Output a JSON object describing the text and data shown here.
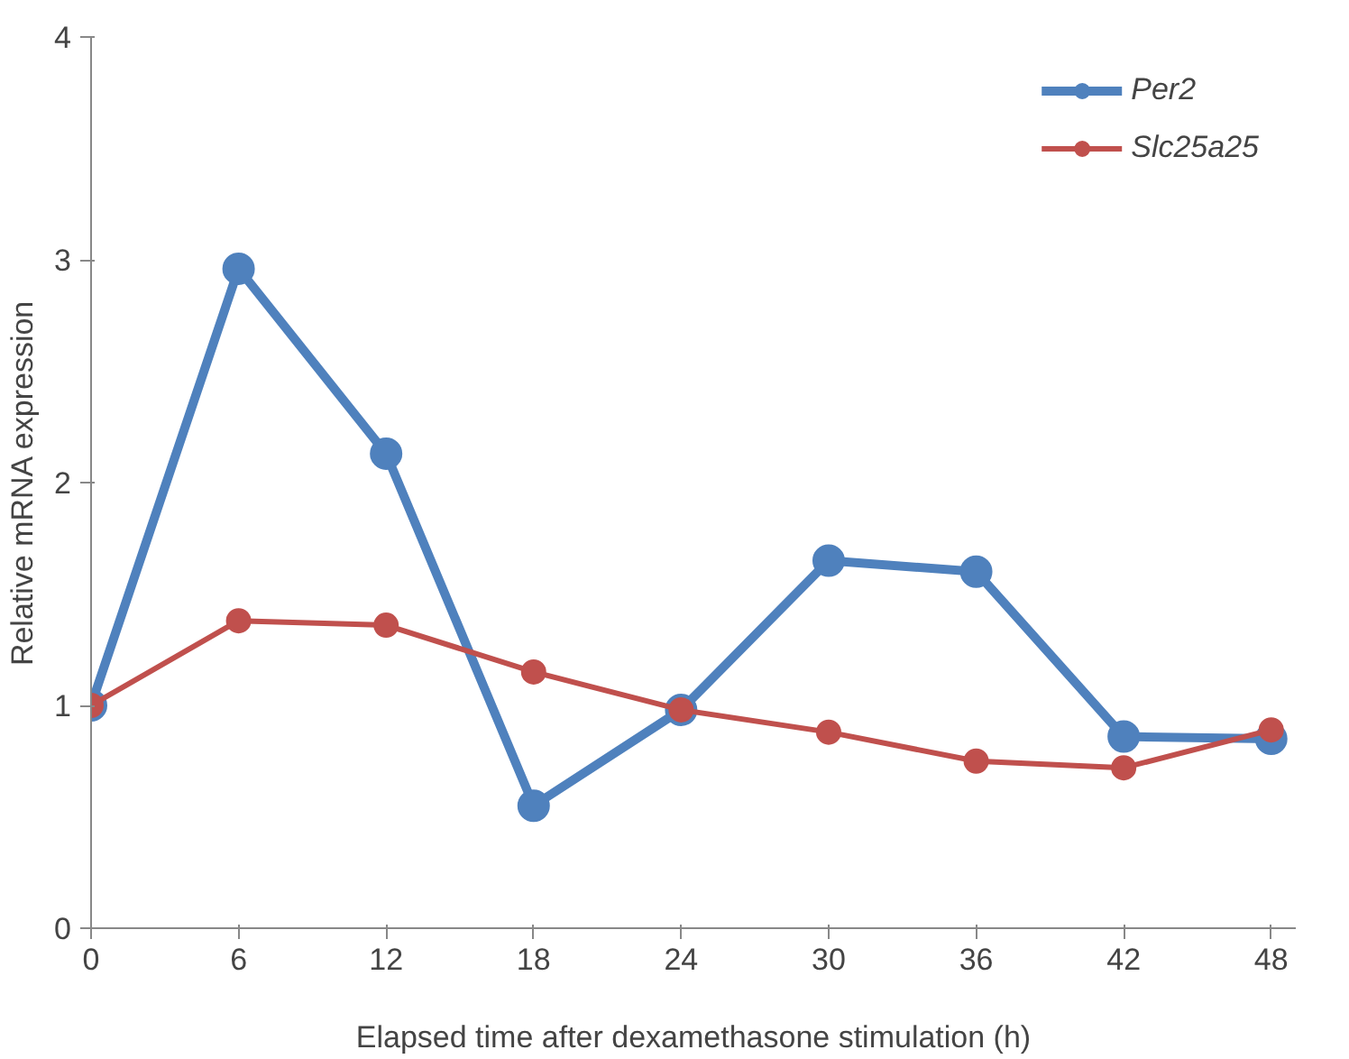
{
  "chart_data": {
    "type": "line",
    "xlabel": "Elapsed time after dexamethasone stimulation (h)",
    "ylabel": "Relative mRNA expression",
    "x": [
      0,
      6,
      12,
      18,
      24,
      30,
      36,
      42,
      48
    ],
    "series": [
      {
        "name": "Per2",
        "color": "#4f81bd",
        "values": [
          1,
          2.96,
          2.13,
          0.55,
          0.98,
          1.65,
          1.6,
          0.86,
          0.85
        ]
      },
      {
        "name": "Slc25a25",
        "color": "#c0504d",
        "values": [
          1,
          1.38,
          1.36,
          1.15,
          0.98,
          0.88,
          0.75,
          0.72,
          0.89
        ]
      }
    ],
    "xlim": [
      0,
      49
    ],
    "xticks": [
      0,
      6,
      12,
      18,
      24,
      30,
      36,
      42,
      48
    ],
    "ylim": [
      0,
      4
    ],
    "yticks": [
      0,
      1,
      2,
      3,
      4
    ],
    "grid": false,
    "legend": "top right",
    "marker": "circle",
    "line_style": "solid"
  }
}
